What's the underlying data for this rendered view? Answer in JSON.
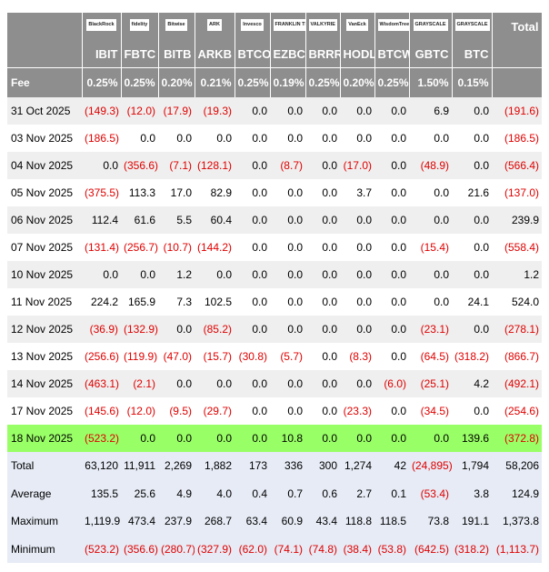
{
  "header": {
    "logos": [
      "BlackRock",
      "fidelity",
      "Bitwise",
      "ARK",
      "Invesco",
      "FRANKLIN TEMPLETON",
      "VALKYRIE",
      "VanEck",
      "WisdomTree",
      "GRAYSCALE",
      "GRAYSCALE"
    ],
    "total": "Total",
    "tickers": [
      "IBIT",
      "FBTC",
      "BITB",
      "ARKB",
      "BTCO",
      "EZBC",
      "BRRR",
      "HODL",
      "BTCW",
      "GBTC",
      "BTC"
    ]
  },
  "fee": {
    "label": "Fee",
    "values": [
      "0.25%",
      "0.25%",
      "0.20%",
      "0.21%",
      "0.25%",
      "0.19%",
      "0.25%",
      "0.20%",
      "0.25%",
      "1.50%",
      "0.15%"
    ]
  },
  "table": {
    "rows": [
      [
        "31 Oct 2025",
        "(149.3)",
        "(12.0)",
        "(17.9)",
        "(19.3)",
        "0.0",
        "0.0",
        "0.0",
        "0.0",
        "0.0",
        "6.9",
        "0.0",
        "(191.6)"
      ],
      [
        "03 Nov 2025",
        "(186.5)",
        "0.0",
        "0.0",
        "0.0",
        "0.0",
        "0.0",
        "0.0",
        "0.0",
        "0.0",
        "0.0",
        "0.0",
        "(186.5)"
      ],
      [
        "04 Nov 2025",
        "0.0",
        "(356.6)",
        "(7.1)",
        "(128.1)",
        "0.0",
        "(8.7)",
        "0.0",
        "(17.0)",
        "0.0",
        "(48.9)",
        "0.0",
        "(566.4)"
      ],
      [
        "05 Nov 2025",
        "(375.5)",
        "113.3",
        "17.0",
        "82.9",
        "0.0",
        "0.0",
        "0.0",
        "3.7",
        "0.0",
        "0.0",
        "21.6",
        "(137.0)"
      ],
      [
        "06 Nov 2025",
        "112.4",
        "61.6",
        "5.5",
        "60.4",
        "0.0",
        "0.0",
        "0.0",
        "0.0",
        "0.0",
        "0.0",
        "0.0",
        "239.9"
      ],
      [
        "07 Nov 2025",
        "(131.4)",
        "(256.7)",
        "(10.7)",
        "(144.2)",
        "0.0",
        "0.0",
        "0.0",
        "0.0",
        "0.0",
        "(15.4)",
        "0.0",
        "(558.4)"
      ],
      [
        "10 Nov 2025",
        "0.0",
        "0.0",
        "1.2",
        "0.0",
        "0.0",
        "0.0",
        "0.0",
        "0.0",
        "0.0",
        "0.0",
        "0.0",
        "1.2"
      ],
      [
        "11 Nov 2025",
        "224.2",
        "165.9",
        "7.3",
        "102.5",
        "0.0",
        "0.0",
        "0.0",
        "0.0",
        "0.0",
        "0.0",
        "24.1",
        "524.0"
      ],
      [
        "12 Nov 2025",
        "(36.9)",
        "(132.9)",
        "0.0",
        "(85.2)",
        "0.0",
        "0.0",
        "0.0",
        "0.0",
        "0.0",
        "(23.1)",
        "0.0",
        "(278.1)"
      ],
      [
        "13 Nov 2025",
        "(256.6)",
        "(119.9)",
        "(47.0)",
        "(15.7)",
        "(30.8)",
        "(5.7)",
        "0.0",
        "(8.3)",
        "0.0",
        "(64.5)",
        "(318.2)",
        "(866.7)"
      ],
      [
        "14 Nov 2025",
        "(463.1)",
        "(2.1)",
        "0.0",
        "0.0",
        "0.0",
        "0.0",
        "0.0",
        "0.0",
        "(6.0)",
        "(25.1)",
        "4.2",
        "(492.1)"
      ],
      [
        "17 Nov 2025",
        "(145.6)",
        "(12.0)",
        "(9.5)",
        "(29.7)",
        "0.0",
        "0.0",
        "0.0",
        "(23.3)",
        "0.0",
        "(34.5)",
        "0.0",
        "(254.6)"
      ],
      [
        "18 Nov 2025",
        "(523.2)",
        "0.0",
        "0.0",
        "0.0",
        "0.0",
        "10.8",
        "0.0",
        "0.0",
        "0.0",
        "0.0",
        "139.6",
        "(372.8)"
      ]
    ]
  },
  "summary": {
    "rows": [
      [
        "Total",
        "63,120",
        "11,911",
        "2,269",
        "1,882",
        "173",
        "336",
        "300",
        "1,274",
        "42",
        "(24,895)",
        "1,794",
        "58,206"
      ],
      [
        "Average",
        "135.5",
        "25.6",
        "4.9",
        "4.0",
        "0.4",
        "0.7",
        "0.6",
        "2.7",
        "0.1",
        "(53.4)",
        "3.8",
        "124.9"
      ],
      [
        "Maximum",
        "1,119.9",
        "473.4",
        "237.9",
        "268.7",
        "63.4",
        "60.9",
        "43.4",
        "118.8",
        "118.5",
        "73.8",
        "191.1",
        "1,373.8"
      ],
      [
        "Minimum",
        "(523.2)",
        "(356.6)",
        "(280.7)",
        "(327.9)",
        "(62.0)",
        "(74.1)",
        "(74.8)",
        "(38.4)",
        "(53.8)",
        "(642.5)",
        "(318.2)",
        "(1,113.7)"
      ]
    ]
  }
}
